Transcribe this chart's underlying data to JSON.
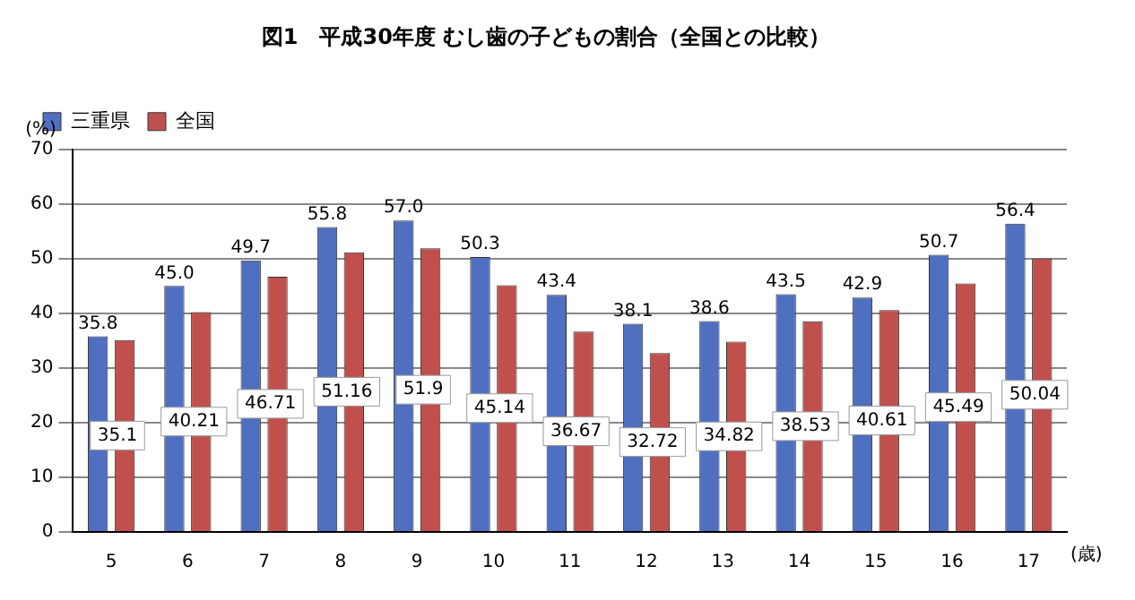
{
  "chart_data": {
    "type": "bar",
    "title": "図1　平成30年度 むし歯の子どもの割合（全国との比較）",
    "ylabel": "(%)",
    "xlabel": "(歳)",
    "categories": [
      "5",
      "6",
      "7",
      "8",
      "9",
      "10",
      "11",
      "12",
      "13",
      "14",
      "15",
      "16",
      "17"
    ],
    "series": [
      {
        "name": "三重県",
        "color": "#4f6fc0",
        "values": [
          35.8,
          45.0,
          49.7,
          55.8,
          57.0,
          50.3,
          43.4,
          38.1,
          38.6,
          43.5,
          42.9,
          50.7,
          56.4
        ],
        "value_labels": [
          "35.8",
          "45.0",
          "49.7",
          "55.8",
          "57.0",
          "50.3",
          "43.4",
          "38.1",
          "38.6",
          "43.5",
          "42.9",
          "50.7",
          "56.4"
        ]
      },
      {
        "name": "全国",
        "color": "#c0504d",
        "values": [
          35.1,
          40.21,
          46.71,
          51.16,
          51.9,
          45.14,
          36.67,
          32.72,
          34.82,
          38.53,
          40.61,
          45.49,
          50.04
        ],
        "value_labels": [
          "35.1",
          "40.21",
          "46.71",
          "51.16",
          "51.9",
          "45.14",
          "36.67",
          "32.72",
          "34.82",
          "38.53",
          "40.61",
          "45.49",
          "50.04"
        ]
      }
    ],
    "ylim": [
      0,
      70
    ],
    "yticks": [
      0,
      10,
      20,
      30,
      40,
      50,
      60,
      70
    ],
    "grid": "y",
    "legend": "top left"
  }
}
